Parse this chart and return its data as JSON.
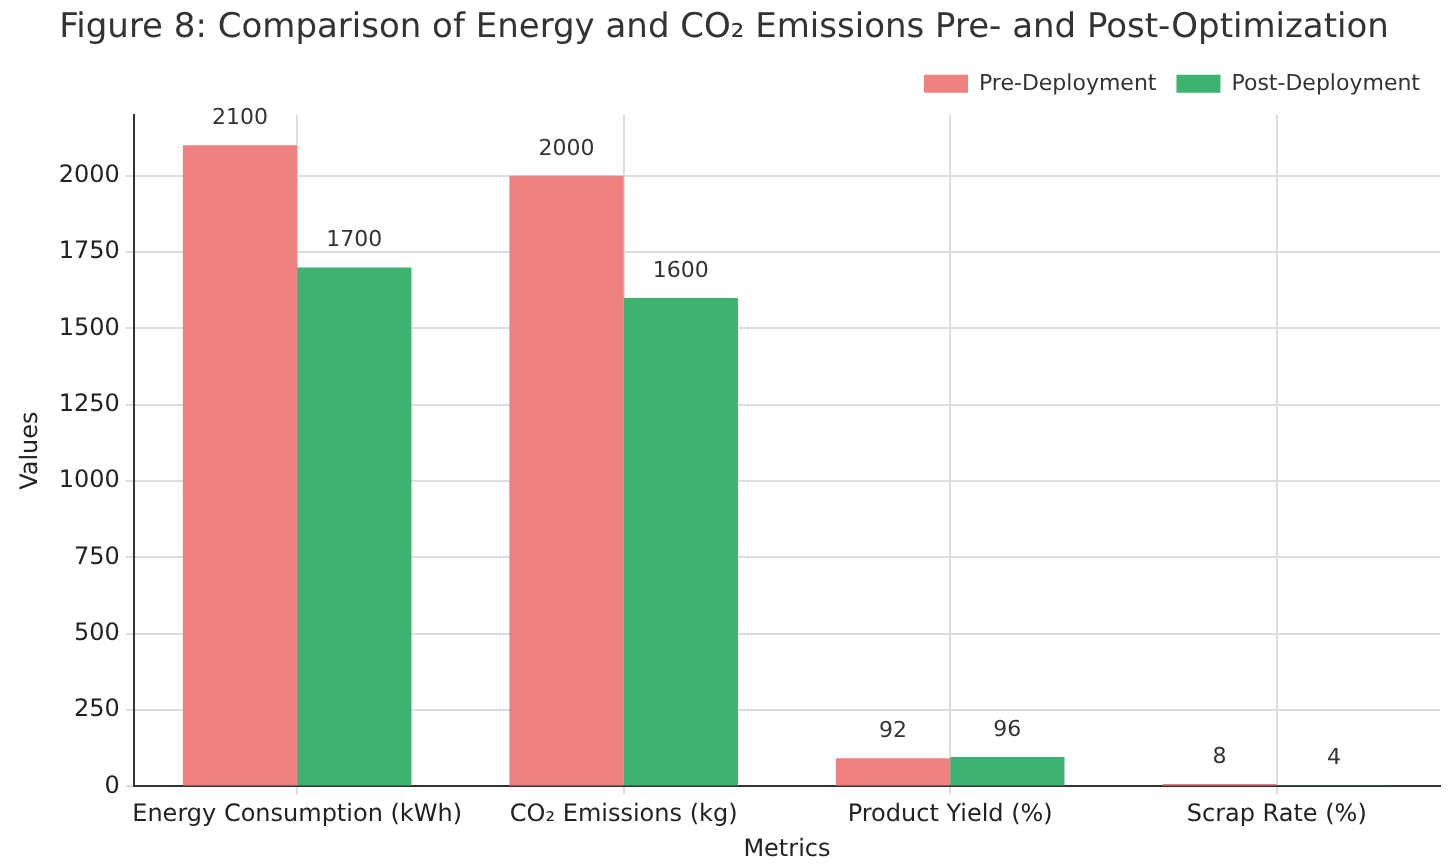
{
  "chart_data": {
    "type": "bar",
    "title": "Figure 8: Comparison of Energy and CO₂ Emissions Pre- and Post-Optimization",
    "xlabel": "Metrics",
    "ylabel": "Values",
    "categories": [
      "Energy Consumption (kWh)",
      "CO₂ Emissions (kg)",
      "Product Yield (%)",
      "Scrap Rate (%)"
    ],
    "series": [
      {
        "name": "Pre-Deployment",
        "color": "#f08080",
        "values": [
          2100,
          2000,
          92,
          8
        ]
      },
      {
        "name": "Post-Deployment",
        "color": "#3cb371",
        "values": [
          1700,
          1600,
          96,
          4
        ]
      }
    ],
    "ylim": [
      0,
      2200
    ],
    "yticks": [
      0,
      250,
      500,
      750,
      1000,
      1250,
      1500,
      1750,
      2000
    ],
    "grid": true,
    "legend": "top right",
    "data_labels": true
  }
}
